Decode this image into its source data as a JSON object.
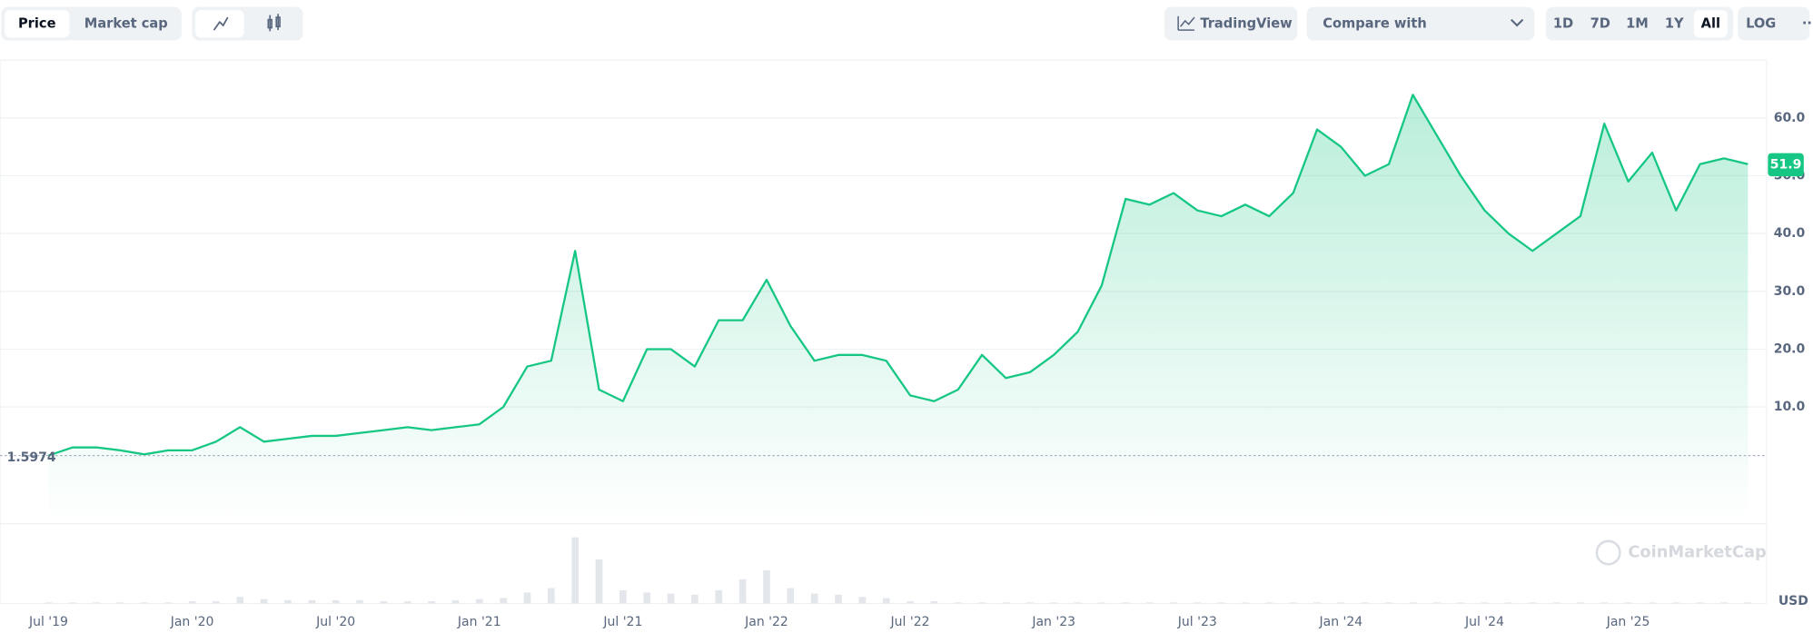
{
  "toolbar": {
    "tabs": [
      "Price",
      "Market cap"
    ],
    "tradingview": "TradingView",
    "compare": "Compare with",
    "ranges": [
      "1D",
      "7D",
      "1M",
      "1Y",
      "All"
    ],
    "log": "LOG",
    "more": "···"
  },
  "chart_data": {
    "type": "line",
    "color": "#16c784",
    "categories": [
      "Jul '19",
      null,
      null,
      null,
      null,
      null,
      "Jan '20",
      null,
      null,
      null,
      null,
      null,
      "Jul '20",
      null,
      null,
      null,
      null,
      null,
      "Jan '21",
      null,
      null,
      null,
      null,
      null,
      "Jul '21",
      null,
      null,
      null,
      null,
      null,
      "Jan '22",
      null,
      null,
      null,
      null,
      null,
      "Jul '22",
      null,
      null,
      null,
      null,
      null,
      "Jan '23",
      null,
      null,
      null,
      null,
      null,
      "Jul '23",
      null,
      null,
      null,
      null,
      null,
      "Jan '24",
      null,
      null,
      null,
      null,
      null,
      "Jul '24",
      null,
      null,
      null,
      null,
      null,
      "Jan '25",
      null,
      null,
      null,
      null,
      null
    ],
    "series": [
      {
        "name": "Price",
        "color": "#16c784",
        "values": [
          1.6,
          3,
          3,
          2.5,
          1.8,
          2.5,
          2.5,
          4,
          6.5,
          4,
          4.5,
          5,
          5,
          5.5,
          6,
          6.5,
          6,
          6.5,
          7,
          10,
          17,
          18,
          37,
          13,
          11,
          20,
          20,
          17,
          25,
          25,
          32,
          24,
          18,
          19,
          19,
          18,
          12,
          11,
          13,
          19,
          15,
          16,
          19,
          23,
          31,
          46,
          45,
          47,
          44,
          43,
          45,
          43,
          47,
          58,
          55,
          50,
          52,
          64,
          57,
          50,
          44,
          40,
          37,
          40,
          43,
          59,
          49,
          54,
          44,
          52,
          53,
          52
        ]
      }
    ],
    "volume": [
      1,
      1,
      1,
      1,
      1,
      1,
      2,
      2,
      6,
      4,
      3,
      3,
      3,
      3,
      2,
      2,
      2,
      3,
      4,
      5,
      10,
      14,
      60,
      40,
      12,
      10,
      9,
      8,
      12,
      22,
      30,
      14,
      9,
      8,
      6,
      5,
      2,
      2,
      1,
      1,
      1,
      1,
      1,
      1,
      1,
      1,
      1,
      1,
      1,
      1,
      1,
      1,
      1,
      1,
      1,
      1,
      1,
      1,
      1,
      1,
      1,
      1,
      1,
      1,
      1,
      1,
      1,
      1,
      1,
      1,
      1,
      1
    ],
    "vlim": [
      0,
      65
    ],
    "ylim": [
      -10,
      70
    ],
    "yticks": [
      {
        "value": 10,
        "label": "10.0"
      },
      {
        "value": 20,
        "label": "20.0"
      },
      {
        "value": 30,
        "label": "30.0"
      },
      {
        "value": 40,
        "label": "40.0"
      },
      {
        "value": 50,
        "label": "50.0"
      },
      {
        "value": 60,
        "label": "60.0"
      }
    ],
    "grid": true,
    "start_price": {
      "value": 1.5974,
      "label": "1.5974"
    },
    "current_price": 51.9,
    "watermark": "CoinMarketCap",
    "unit": "USD"
  }
}
